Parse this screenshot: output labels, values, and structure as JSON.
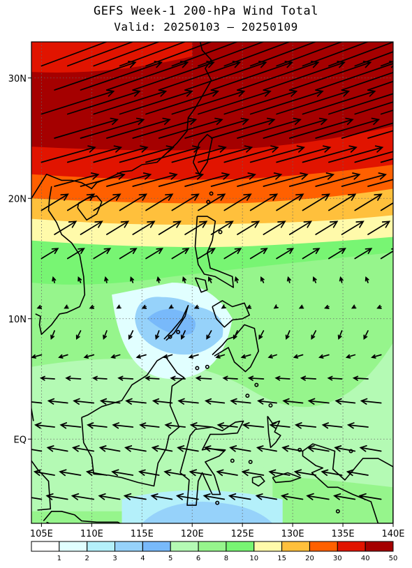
{
  "title": "GEFS Week-1 200-hPa Wind Total",
  "subtitle": "Valid: 20250103 — 20250109",
  "chart_data": {
    "type": "heatmap",
    "title": "GEFS Week-1 200-hPa Wind Total",
    "subtitle": "Valid: 20250103 — 20250109",
    "variable": "200-hPa wind speed (shaded) and wind vectors",
    "x_range_lon": [
      104,
      140
    ],
    "y_range_lat": [
      -7,
      33
    ],
    "x_ticks": [
      "105E",
      "110E",
      "115E",
      "120E",
      "125E",
      "130E",
      "135E",
      "140E"
    ],
    "x_tick_values": [
      105,
      110,
      115,
      120,
      125,
      130,
      135,
      140
    ],
    "y_ticks": [
      "EQ",
      "10N",
      "20N",
      "30N"
    ],
    "y_tick_values": [
      0,
      10,
      20,
      30
    ],
    "grid": "dotted",
    "colorbar": {
      "levels": [
        "1",
        "2",
        "3",
        "4",
        "5",
        "6",
        "8",
        "10",
        "15",
        "20",
        "30",
        "40",
        "50"
      ],
      "colors": [
        "#ffffff",
        "#e1ffff",
        "#b4f0fa",
        "#96d2fa",
        "#78b9fa",
        "#b4fab4",
        "#96f58c",
        "#78f573",
        "#fffaaa",
        "#ffc03c",
        "#ff6000",
        "#e11400",
        "#a50000"
      ]
    },
    "speed_bands_by_latitude": [
      {
        "lat_range": "25N-33N",
        "speed": ">50"
      },
      {
        "lat_range": "22N-25N",
        "speed": "40-50"
      },
      {
        "lat_range": "20N-22N",
        "speed": "30-40"
      },
      {
        "lat_range": "18N-20N",
        "speed": "20-30"
      },
      {
        "lat_range": "16N-18N",
        "speed": "15-20"
      },
      {
        "lat_range": "13N-16N",
        "speed": "10-15"
      },
      {
        "lat_range": "8N-11N (115E-123E)",
        "speed": "3-5"
      },
      {
        "lat_range": "7S-6S (115E-128E)",
        "speed": "3-5"
      }
    ],
    "vector_direction_by_latitude": [
      {
        "lat_range": "north of 20N",
        "flow": "strong westerly to southwesterly"
      },
      {
        "lat_range": "14N-20N",
        "flow": "southwesterly"
      },
      {
        "lat_range": "8N-14N",
        "flow": "northerly to north-northwesterly"
      },
      {
        "lat_range": "south of 8N",
        "flow": "easterly to east-southeasterly"
      }
    ]
  },
  "colors": {
    "frame": "#000000",
    "coast": "#000000"
  }
}
